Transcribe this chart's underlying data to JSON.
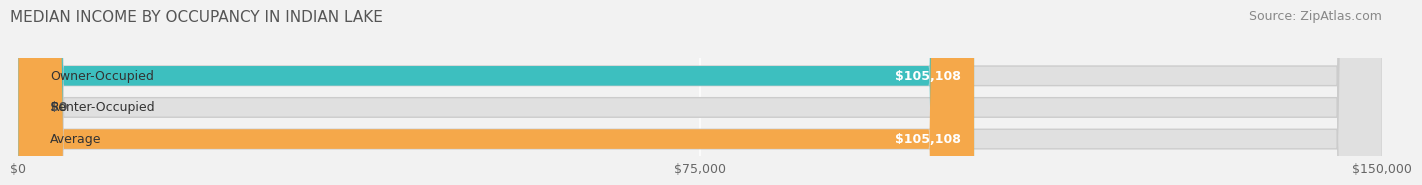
{
  "title": "MEDIAN INCOME BY OCCUPANCY IN INDIAN LAKE",
  "source": "Source: ZipAtlas.com",
  "categories": [
    "Owner-Occupied",
    "Renter-Occupied",
    "Average"
  ],
  "values": [
    105108,
    0,
    105108
  ],
  "bar_colors": [
    "#3dbfbf",
    "#c4a8d4",
    "#f5a84a"
  ],
  "bar_labels": [
    "$105,108",
    "$0",
    "$105,108"
  ],
  "xlim": [
    0,
    150000
  ],
  "xticks": [
    0,
    75000,
    150000
  ],
  "xtick_labels": [
    "$0",
    "$75,000",
    "$150,000"
  ],
  "background_color": "#f2f2f2",
  "bar_background_color": "#e0e0e0",
  "title_fontsize": 11,
  "source_fontsize": 9,
  "label_fontsize": 9,
  "tick_fontsize": 9
}
